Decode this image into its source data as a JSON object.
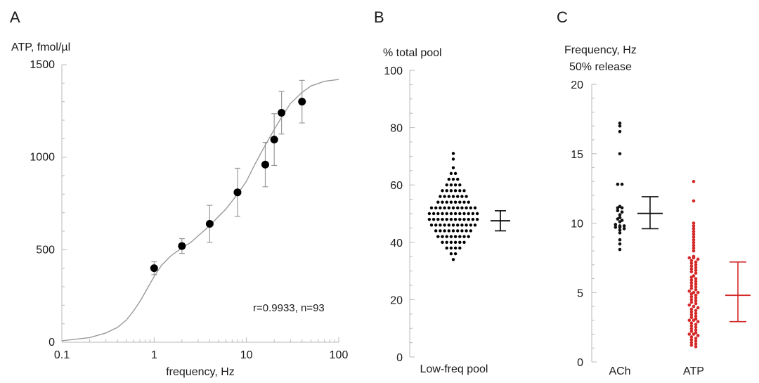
{
  "chart_data": [
    {
      "panel": "A",
      "type": "scatter",
      "ylabel": "ATP, fmol/µl",
      "xlabel": "frequency, Hz",
      "x_scale": "log",
      "xlim": [
        0.1,
        100
      ],
      "ylim": [
        0,
        1500
      ],
      "x_ticks": [
        "0.1",
        "1",
        "10",
        "100"
      ],
      "y_ticks": [
        "0",
        "500",
        "1000",
        "1500"
      ],
      "annotation": "r=0.9933, n=93",
      "points": [
        {
          "x": 1,
          "y": 400,
          "err": 35
        },
        {
          "x": 2,
          "y": 520,
          "err": 40
        },
        {
          "x": 4,
          "y": 640,
          "err": 100
        },
        {
          "x": 8,
          "y": 810,
          "err": 130
        },
        {
          "x": 16,
          "y": 960,
          "err": 120
        },
        {
          "x": 20,
          "y": 1095,
          "err": 140
        },
        {
          "x": 24,
          "y": 1240,
          "err": 115
        },
        {
          "x": 40,
          "y": 1300,
          "err": 115
        }
      ],
      "fit_curve": {
        "x": [
          0.1,
          0.2,
          0.3,
          0.4,
          0.5,
          0.6,
          0.7,
          0.8,
          1,
          1.2,
          1.5,
          2,
          2.5,
          3,
          4,
          5,
          6,
          8,
          10,
          12,
          15,
          20,
          25,
          30,
          40,
          50,
          70,
          100
        ],
        "y": [
          8,
          25,
          50,
          80,
          120,
          170,
          220,
          270,
          355,
          415,
          465,
          510,
          540,
          575,
          630,
          680,
          720,
          800,
          870,
          950,
          1040,
          1150,
          1230,
          1290,
          1350,
          1385,
          1410,
          1420
        ]
      }
    },
    {
      "panel": "B",
      "type": "scatter",
      "ylabel": "% total pool",
      "categories": [
        "Low-freq pool"
      ],
      "ylim": [
        0,
        100
      ],
      "y_ticks": [
        "0",
        "20",
        "40",
        "60",
        "80",
        "100"
      ],
      "points": [
        71,
        69,
        66,
        64,
        64,
        62,
        62,
        62,
        60,
        60,
        60,
        60,
        58,
        58,
        58,
        58,
        58,
        58,
        56,
        56,
        56,
        56,
        56,
        56,
        56,
        54,
        54,
        54,
        54,
        54,
        54,
        54,
        54,
        52,
        52,
        52,
        52,
        52,
        52,
        52,
        52,
        52,
        52,
        52,
        50,
        50,
        50,
        50,
        50,
        50,
        50,
        50,
        50,
        50,
        50,
        50,
        48,
        48,
        48,
        48,
        48,
        48,
        48,
        48,
        48,
        48,
        48,
        48,
        46,
        46,
        46,
        46,
        46,
        46,
        46,
        46,
        46,
        46,
        46,
        44,
        44,
        44,
        44,
        44,
        44,
        44,
        44,
        44,
        42,
        42,
        42,
        42,
        42,
        42,
        42,
        42,
        40,
        40,
        40,
        40,
        40,
        40,
        38,
        38,
        38,
        38,
        36,
        36,
        34
      ],
      "summary": {
        "mean": 47.5,
        "err_low": 44,
        "err_high": 51
      }
    },
    {
      "panel": "C",
      "type": "scatter",
      "ylabel": "Frequency, Hz\n50% release",
      "categories": [
        "ACh",
        "ATP"
      ],
      "ylim": [
        0,
        20
      ],
      "y_ticks": [
        "0",
        "5",
        "10",
        "15",
        "20"
      ],
      "series": [
        {
          "name": "ACh",
          "color": "#111111",
          "points": [
            17.2,
            17.0,
            16.6,
            15.0,
            12.8,
            12.8,
            11.2,
            11.1,
            11.1,
            10.9,
            10.8,
            10.6,
            10.4,
            10.3,
            10.2,
            10.1,
            9.9,
            9.8,
            9.8,
            9.7,
            9.7,
            9.6,
            9.5,
            9.3,
            8.8,
            8.5,
            8.1
          ],
          "summary": {
            "mean": 10.7,
            "err_low": 9.6,
            "err_high": 11.9
          }
        },
        {
          "name": "ATP",
          "color": "#d42a2a",
          "points": [
            13.0,
            11.6,
            10.0,
            9.8,
            9.6,
            9.4,
            9.2,
            9.0,
            8.8,
            8.6,
            8.4,
            8.2,
            8.0,
            7.6,
            7.5,
            7.5,
            7.4,
            7.3,
            7.2,
            7.1,
            7.0,
            6.9,
            6.8,
            6.7,
            6.6,
            6.5,
            6.4,
            6.2,
            6.1,
            6.0,
            5.9,
            5.8,
            5.7,
            5.6,
            5.5,
            5.4,
            5.3,
            5.2,
            5.1,
            5.0,
            5.0,
            4.9,
            4.8,
            4.7,
            4.6,
            4.5,
            4.4,
            4.3,
            4.2,
            4.1,
            4.0,
            3.9,
            3.8,
            3.7,
            3.6,
            3.5,
            3.4,
            3.3,
            3.2,
            3.1,
            3.0,
            3.0,
            2.9,
            2.8,
            2.7,
            2.6,
            2.5,
            2.4,
            2.3,
            2.2,
            2.1,
            2.0,
            2.0,
            1.9,
            1.8,
            1.7,
            1.6,
            1.5,
            1.4,
            1.3,
            1.2,
            1.1
          ],
          "summary": {
            "mean": 4.8,
            "err_low": 2.9,
            "err_high": 7.2
          }
        }
      ]
    }
  ]
}
